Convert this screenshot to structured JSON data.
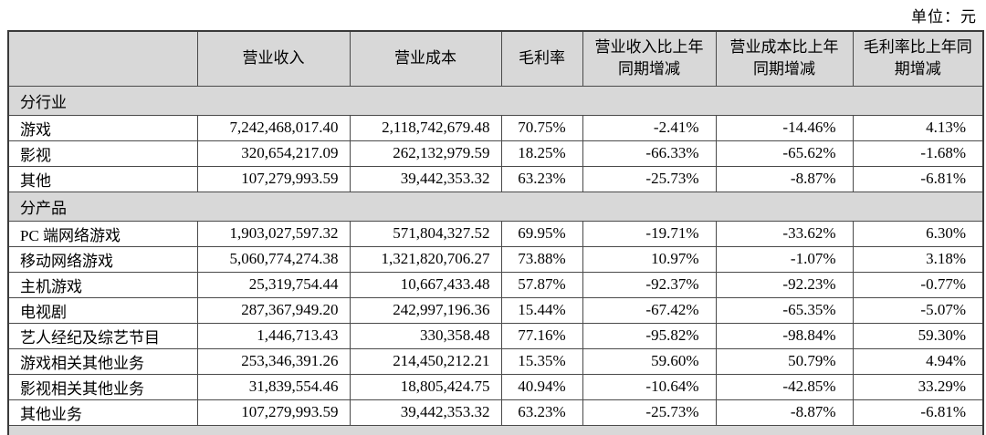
{
  "unit_label": "单位：元",
  "table": {
    "columns": [
      "",
      "营业收入",
      "营业成本",
      "毛利率",
      "营业收入比上年同期增减",
      "营业成本比上年同期增减",
      "毛利率比上年同期增减"
    ],
    "sections": [
      {
        "title": "分行业",
        "rows": [
          {
            "name": "游戏",
            "revenue": "7,242,468,017.40",
            "cost": "2,118,742,679.48",
            "margin": "70.75%",
            "revenue_yoy": "-2.41%",
            "cost_yoy": "-14.46%",
            "margin_yoy": "4.13%"
          },
          {
            "name": "影视",
            "revenue": "320,654,217.09",
            "cost": "262,132,979.59",
            "margin": "18.25%",
            "revenue_yoy": "-66.33%",
            "cost_yoy": "-65.62%",
            "margin_yoy": "-1.68%"
          },
          {
            "name": "其他",
            "revenue": "107,279,993.59",
            "cost": "39,442,353.32",
            "margin": "63.23%",
            "revenue_yoy": "-25.73%",
            "cost_yoy": "-8.87%",
            "margin_yoy": "-6.81%"
          }
        ]
      },
      {
        "title": "分产品",
        "rows": [
          {
            "name": "PC 端网络游戏",
            "revenue": "1,903,027,597.32",
            "cost": "571,804,327.52",
            "margin": "69.95%",
            "revenue_yoy": "-19.71%",
            "cost_yoy": "-33.62%",
            "margin_yoy": "6.30%"
          },
          {
            "name": "移动网络游戏",
            "revenue": "5,060,774,274.38",
            "cost": "1,321,820,706.27",
            "margin": "73.88%",
            "revenue_yoy": "10.97%",
            "cost_yoy": "-1.07%",
            "margin_yoy": "3.18%"
          },
          {
            "name": "主机游戏",
            "revenue": "25,319,754.44",
            "cost": "10,667,433.48",
            "margin": "57.87%",
            "revenue_yoy": "-92.37%",
            "cost_yoy": "-92.23%",
            "margin_yoy": "-0.77%"
          },
          {
            "name": "电视剧",
            "revenue": "287,367,949.20",
            "cost": "242,997,196.36",
            "margin": "15.44%",
            "revenue_yoy": "-67.42%",
            "cost_yoy": "-65.35%",
            "margin_yoy": "-5.07%"
          },
          {
            "name": "艺人经纪及综艺节目",
            "revenue": "1,446,713.43",
            "cost": "330,358.48",
            "margin": "77.16%",
            "revenue_yoy": "-95.82%",
            "cost_yoy": "-98.84%",
            "margin_yoy": "59.30%"
          },
          {
            "name": "游戏相关其他业务",
            "revenue": "253,346,391.26",
            "cost": "214,450,212.21",
            "margin": "15.35%",
            "revenue_yoy": "59.60%",
            "cost_yoy": "50.79%",
            "margin_yoy": "4.94%"
          },
          {
            "name": "影视相关其他业务",
            "revenue": "31,839,554.46",
            "cost": "18,805,424.75",
            "margin": "40.94%",
            "revenue_yoy": "-10.64%",
            "cost_yoy": "-42.85%",
            "margin_yoy": "33.29%"
          },
          {
            "name": "其他业务",
            "revenue": "107,279,993.59",
            "cost": "39,442,353.32",
            "margin": "63.23%",
            "revenue_yoy": "-25.73%",
            "cost_yoy": "-8.87%",
            "margin_yoy": "-6.81%"
          }
        ]
      }
    ]
  },
  "colors": {
    "header_bg": "#d8d8d8",
    "section_bg": "#d8d8d8",
    "border": "#4a4a4a",
    "text": "#000000"
  }
}
